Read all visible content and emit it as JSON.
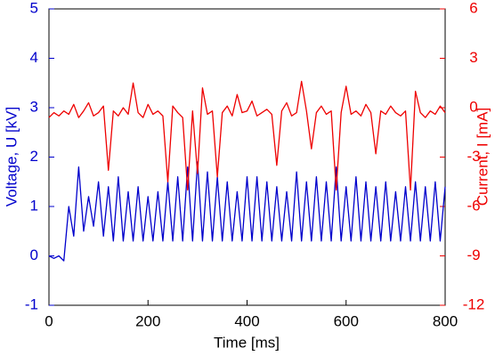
{
  "chart_data": {
    "type": "line",
    "x_label": "Time [ms]",
    "y_label": "Voltage, U [kV]",
    "y2_label": "Current, I [mA]",
    "x": [
      0,
      10,
      20,
      30,
      40,
      50,
      60,
      70,
      80,
      90,
      100,
      110,
      120,
      130,
      140,
      150,
      160,
      170,
      180,
      190,
      200,
      210,
      220,
      230,
      240,
      250,
      260,
      270,
      280,
      290,
      300,
      310,
      320,
      330,
      340,
      350,
      360,
      370,
      380,
      390,
      400,
      410,
      420,
      430,
      440,
      450,
      460,
      470,
      480,
      490,
      500,
      510,
      520,
      530,
      540,
      550,
      560,
      570,
      580,
      590,
      600,
      610,
      620,
      630,
      640,
      650,
      660,
      670,
      680,
      690,
      700,
      710,
      720,
      730,
      740,
      750,
      760,
      770,
      780,
      790,
      800
    ],
    "series": [
      {
        "color": "#0000cc",
        "values": [
          0.0,
          -0.05,
          0.0,
          -0.1,
          1.0,
          0.4,
          1.8,
          0.5,
          1.2,
          0.6,
          1.5,
          0.4,
          1.4,
          0.3,
          1.6,
          0.3,
          1.3,
          0.3,
          1.4,
          0.3,
          1.2,
          0.3,
          1.3,
          0.3,
          1.5,
          0.3,
          1.6,
          0.3,
          1.8,
          0.3,
          1.9,
          0.3,
          1.7,
          0.3,
          1.6,
          0.3,
          1.5,
          0.3,
          1.3,
          0.3,
          1.6,
          0.3,
          1.6,
          0.3,
          1.5,
          0.3,
          1.4,
          0.3,
          1.3,
          0.3,
          1.7,
          0.3,
          1.5,
          0.3,
          1.6,
          0.3,
          1.5,
          0.3,
          1.8,
          0.3,
          1.4,
          0.3,
          1.6,
          0.3,
          1.5,
          0.3,
          1.4,
          0.3,
          1.5,
          0.3,
          1.3,
          0.3,
          1.4,
          0.3,
          1.5,
          0.3,
          1.4,
          0.3,
          1.5,
          0.3,
          1.4
        ]
      },
      {
        "color": "#ee0000",
        "axis": "y2",
        "values": [
          -0.6,
          -0.3,
          -0.5,
          -0.2,
          -0.4,
          0.2,
          -0.6,
          -0.2,
          0.3,
          -0.5,
          -0.3,
          0.1,
          -3.8,
          -0.2,
          -0.5,
          0.0,
          -0.4,
          1.5,
          -0.3,
          -0.6,
          0.2,
          -0.4,
          -0.2,
          -0.5,
          -4.5,
          0.1,
          -0.3,
          -0.6,
          -5.0,
          -0.2,
          -4.0,
          1.2,
          -0.4,
          -0.2,
          -4.2,
          -0.3,
          0.1,
          -0.5,
          0.8,
          -0.3,
          -0.2,
          0.4,
          -0.5,
          -0.3,
          -0.1,
          -0.4,
          -3.5,
          -0.2,
          0.3,
          -0.5,
          -0.3,
          1.6,
          -0.2,
          -2.5,
          -0.3,
          0.1,
          -0.4,
          -0.2,
          -5.0,
          -0.3,
          1.3,
          -0.4,
          -0.2,
          -0.5,
          0.2,
          -0.3,
          -2.8,
          -0.2,
          -0.4,
          0.1,
          -0.3,
          -0.5,
          -0.2,
          -5.0,
          1.0,
          -0.3,
          -0.6,
          -0.2,
          -0.4,
          0.1,
          -0.3
        ]
      }
    ],
    "xlim": [
      0,
      800
    ],
    "xticks": [
      0,
      200,
      400,
      600,
      800
    ],
    "ylim": [
      -1,
      5
    ],
    "yticks": [
      -1,
      0,
      1,
      2,
      3,
      4,
      5
    ],
    "y2lim": [
      -12,
      6
    ],
    "y2ticks": [
      -12,
      -9,
      -6,
      -3,
      0,
      3,
      6
    ]
  }
}
